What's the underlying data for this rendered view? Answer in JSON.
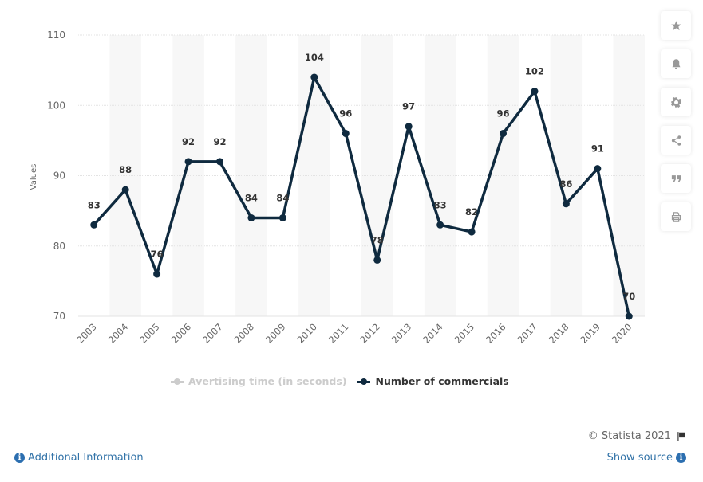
{
  "chart_data": {
    "type": "line",
    "title": "",
    "xlabel": "",
    "ylabel": "Values",
    "categories": [
      "2003",
      "2004",
      "2005",
      "2006",
      "2007",
      "2008",
      "2009",
      "2010",
      "2011",
      "2012",
      "2013",
      "2014",
      "2015",
      "2016",
      "2017",
      "2018",
      "2019",
      "2020"
    ],
    "series": [
      {
        "name": "Avertising time (in seconds)",
        "visible": false,
        "color": "#cccccc",
        "values": []
      },
      {
        "name": "Number of commercials",
        "visible": true,
        "color": "#0f2a3f",
        "values": [
          83,
          88,
          76,
          92,
          92,
          84,
          84,
          104,
          96,
          78,
          97,
          83,
          82,
          96,
          102,
          86,
          91,
          70
        ]
      }
    ],
    "ylim": [
      70,
      110
    ],
    "yticks": [
      70,
      80,
      90,
      100,
      110
    ],
    "grid": true,
    "legend_position": "bottom-center",
    "data_labels": true
  },
  "legend": {
    "items": [
      {
        "label": "Avertising time (in seconds)",
        "state": "hidden"
      },
      {
        "label": "Number of commercials",
        "state": "visible"
      }
    ]
  },
  "toolbar": {
    "buttons": [
      {
        "icon": "star-icon",
        "label": "Favorite"
      },
      {
        "icon": "bell-icon",
        "label": "Notification"
      },
      {
        "icon": "gear-icon",
        "label": "Settings"
      },
      {
        "icon": "share-icon",
        "label": "Share"
      },
      {
        "icon": "quote-icon",
        "label": "Cite"
      },
      {
        "icon": "print-icon",
        "label": "Print"
      }
    ]
  },
  "footer": {
    "copyright": "© Statista 2021",
    "additional_info": "Additional Information",
    "show_source": "Show source"
  }
}
